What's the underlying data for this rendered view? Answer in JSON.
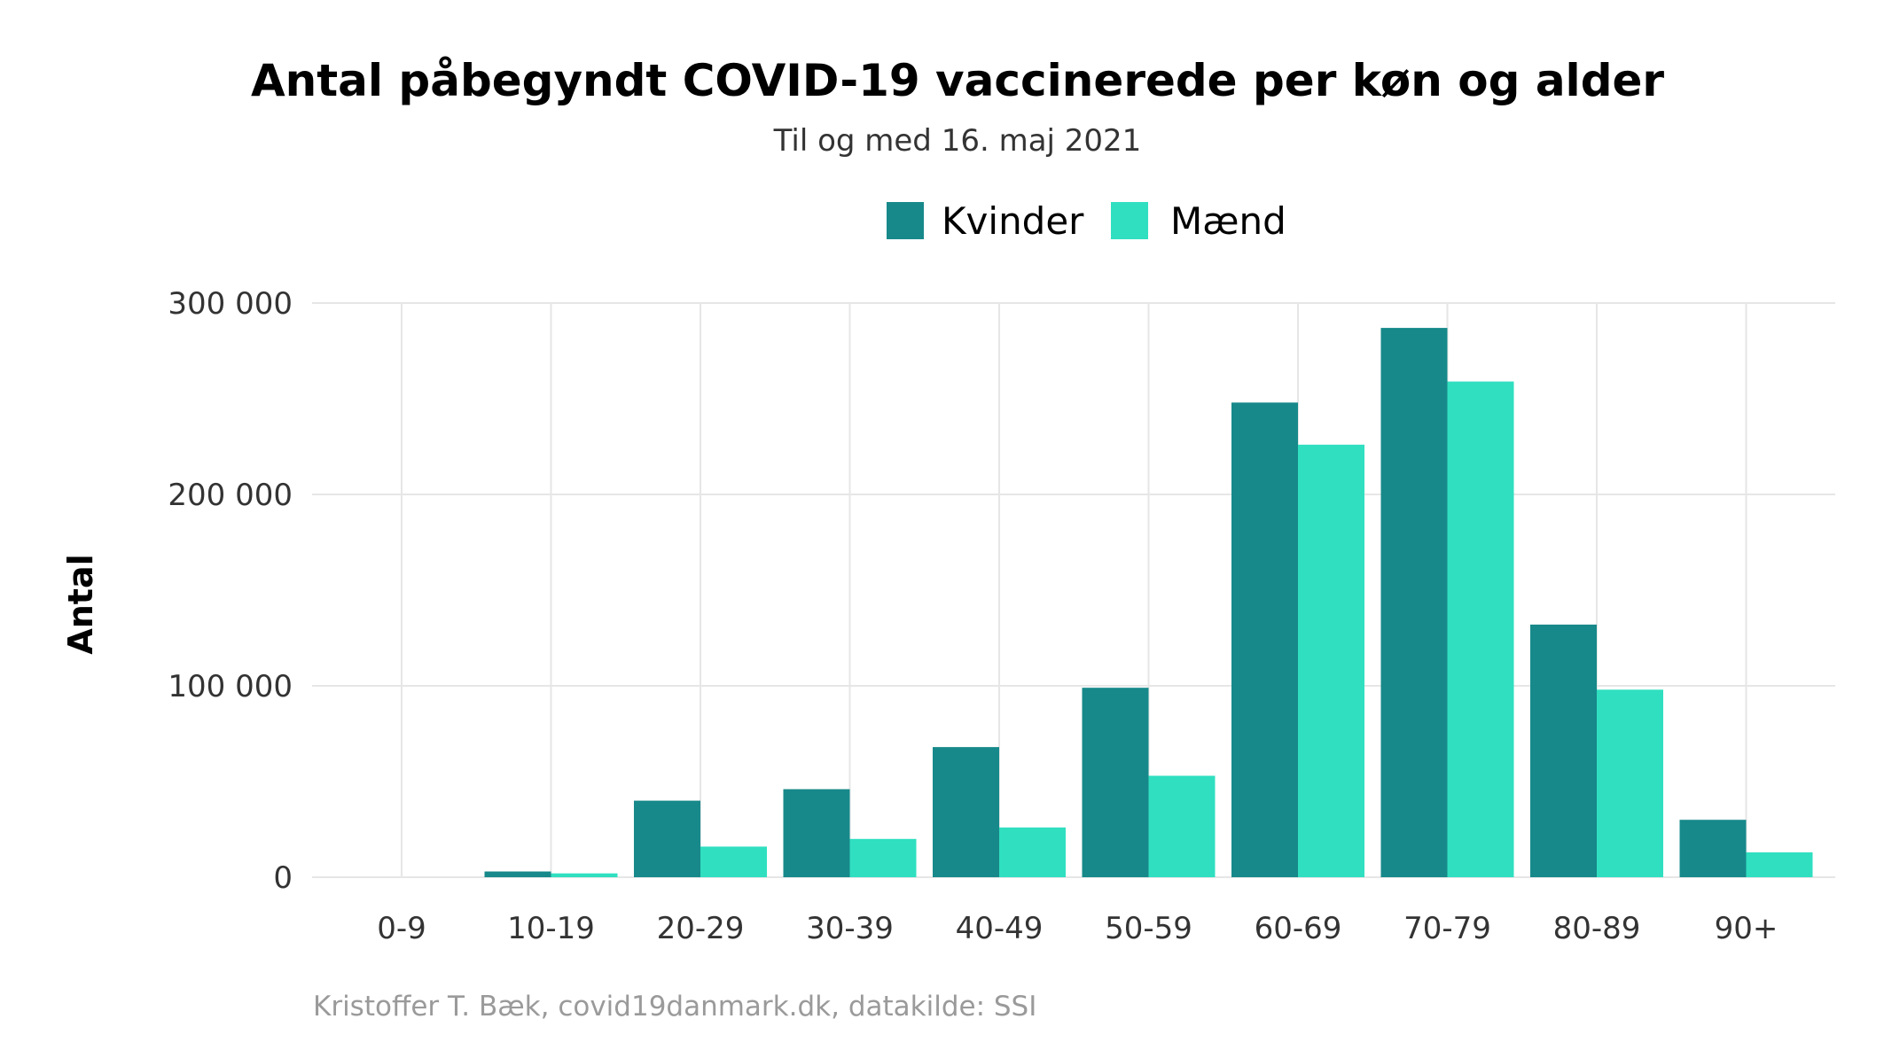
{
  "chart_data": {
    "type": "bar",
    "title": "Antal påbegyndt COVID-19 vaccinerede per køn og alder",
    "subtitle": "Til og med 16. maj 2021",
    "xlabel": "",
    "ylabel": "Antal",
    "caption": "Kristoffer T. Bæk, covid19danmark.dk, datakilde: SSI",
    "categories": [
      "0-9",
      "10-19",
      "20-29",
      "30-39",
      "40-49",
      "50-59",
      "60-69",
      "70-79",
      "80-89",
      "90+"
    ],
    "series": [
      {
        "name": "Kvinder",
        "color": "#17898A",
        "values": [
          0,
          3000,
          40000,
          46000,
          68000,
          99000,
          248000,
          287000,
          132000,
          30000
        ]
      },
      {
        "name": "Mænd",
        "color": "#30DFC0",
        "values": [
          0,
          2000,
          16000,
          20000,
          26000,
          53000,
          226000,
          259000,
          98000,
          13000
        ]
      }
    ],
    "ylim": [
      0,
      300000
    ],
    "yticks": [
      0,
      100000,
      200000,
      300000
    ],
    "ytick_labels": [
      "0",
      "100 000",
      "200 000",
      "300 000"
    ],
    "grid": true,
    "legend_position": "top"
  }
}
